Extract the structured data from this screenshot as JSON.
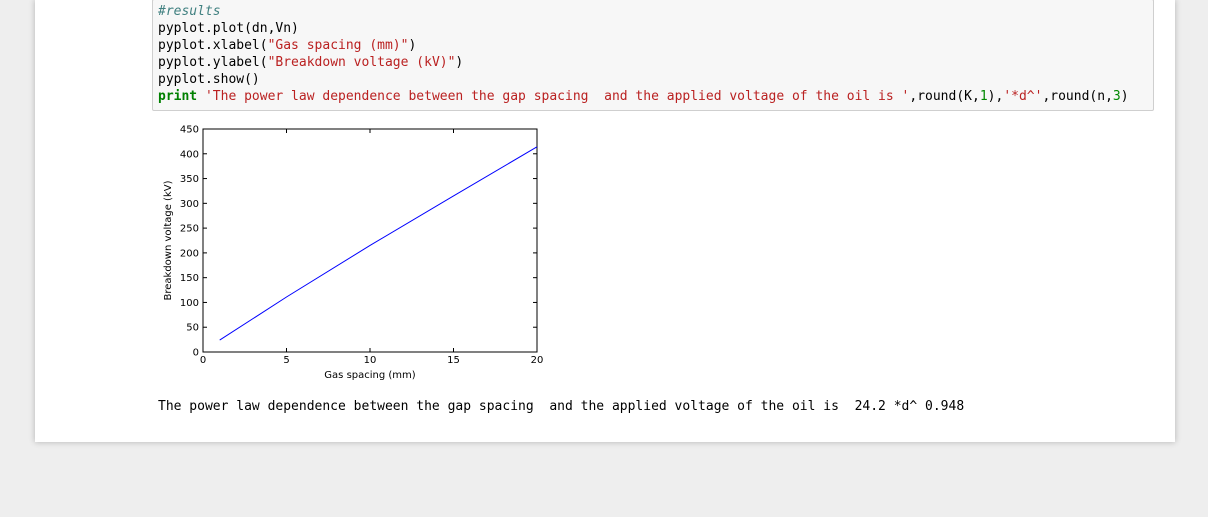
{
  "code": [
    [
      {
        "text": "#results",
        "color": "#408080",
        "style": "italic"
      }
    ],
    [
      {
        "text": "pyplot.plot(dn,Vn)",
        "color": "#000000"
      }
    ],
    [
      {
        "text": "pyplot.xlabel(",
        "color": "#000000"
      },
      {
        "text": "\"Gas spacing (mm)\"",
        "color": "#ba2121"
      },
      {
        "text": ")",
        "color": "#000000"
      }
    ],
    [
      {
        "text": "pyplot.ylabel(",
        "color": "#000000"
      },
      {
        "text": "\"Breakdown voltage (kV)\"",
        "color": "#ba2121"
      },
      {
        "text": ")",
        "color": "#000000"
      }
    ],
    [
      {
        "text": "pyplot.show()",
        "color": "#000000"
      }
    ],
    [
      {
        "text": "print",
        "color": "#008000",
        "style": "bold"
      },
      {
        "text": " ",
        "color": "#000000"
      },
      {
        "text": "'The power law dependence between the gap spacing  and the applied voltage of the oil is '",
        "color": "#ba2121"
      },
      {
        "text": ",round(K,",
        "color": "#000000"
      },
      {
        "text": "1",
        "color": "#008800"
      },
      {
        "text": "),",
        "color": "#000000"
      },
      {
        "text": "'*d^'",
        "color": "#ba2121"
      },
      {
        "text": ",round(n,",
        "color": "#000000"
      },
      {
        "text": "3",
        "color": "#008800"
      },
      {
        "text": ")",
        "color": "#000000"
      }
    ]
  ],
  "chart_data": {
    "type": "line",
    "xlabel": "Gas spacing (mm)",
    "ylabel": "Breakdown voltage (kV)",
    "x": [
      1,
      5,
      10,
      15,
      20
    ],
    "values": [
      24,
      111,
      215,
      315,
      414
    ],
    "color": "#0000ff",
    "xlim": [
      0,
      20
    ],
    "xticks": [
      0,
      5,
      10,
      15,
      20
    ],
    "ylim": [
      0,
      450
    ],
    "yticks": [
      0,
      50,
      100,
      150,
      200,
      250,
      300,
      350,
      400,
      450
    ]
  },
  "output": "The power law dependence between the gap spacing  and the applied voltage of the oil is  24.2 *d^ 0.948"
}
